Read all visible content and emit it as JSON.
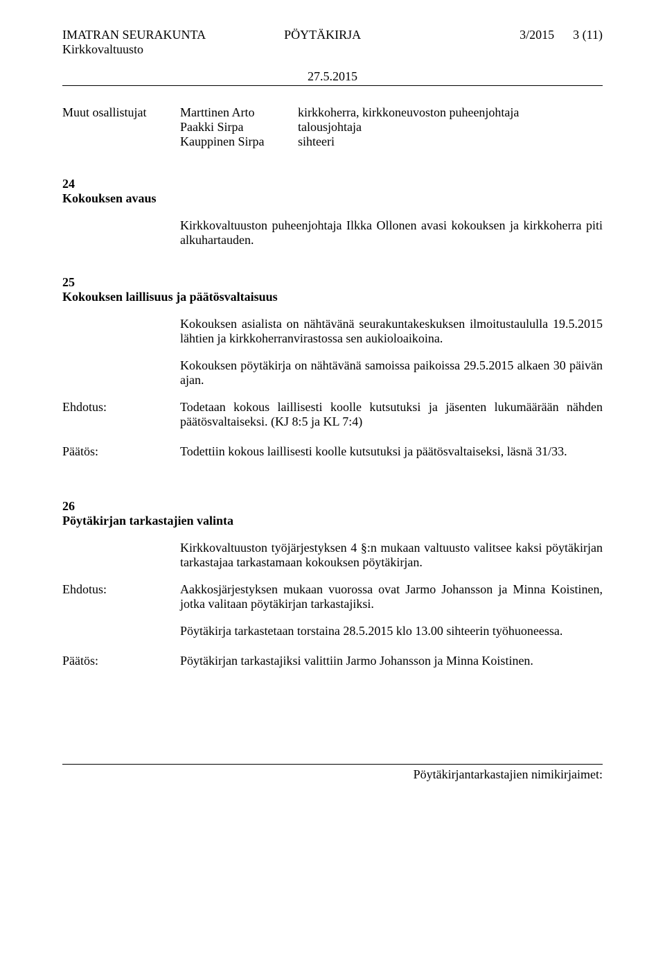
{
  "header": {
    "org": "IMATRAN SEURAKUNTA",
    "body": "Kirkkovaltuusto",
    "doc_type": "PÖYTÄKIRJA",
    "doc_number": "3/2015",
    "page_marker": "3 (11)",
    "date": "27.5.2015"
  },
  "participants": {
    "label": "Muut osallistujat",
    "rows": [
      {
        "name": "Marttinen Arto",
        "role": "kirkkoherra, kirkkoneuvoston puheenjohtaja"
      },
      {
        "name": "Paakki Sirpa",
        "role": "talousjohtaja"
      },
      {
        "name": "Kauppinen Sirpa",
        "role": "sihteeri"
      }
    ]
  },
  "item24": {
    "number": "24",
    "title": "Kokouksen avaus",
    "text": "Kirkkovaltuuston puheenjohtaja Ilkka Ollonen avasi kokouksen ja kirkkoherra piti alkuhartauden."
  },
  "item25": {
    "number": "25",
    "title": "Kokouksen laillisuus ja päätösvaltaisuus",
    "para1": "Kokouksen asialista on nähtävänä seurakuntakeskuksen ilmoitustaululla 19.5.2015 lähtien ja kirkkoherranvirastossa sen aukioloaikoina.",
    "para2": "Kokouksen pöytäkirja on nähtävänä samoissa paikoissa 29.5.2015 alkaen 30 päivän ajan.",
    "ehdotus_label": "Ehdotus:",
    "ehdotus_text": "Todetaan kokous laillisesti koolle kutsutuksi ja jäsenten lukumäärään nähden päätösvaltaiseksi. (KJ 8:5 ja KL 7:4)",
    "paatos_label": "Päätös:",
    "paatos_text": "Todettiin kokous laillisesti koolle kutsutuksi ja päätösvaltaiseksi, läsnä 31/33."
  },
  "item26": {
    "number": "26",
    "title": "Pöytäkirjan tarkastajien valinta",
    "para1": "Kirkkovaltuuston työjärjestyksen 4 §:n mukaan valtuusto valitsee kaksi pöytäkirjan tarkastajaa tarkastamaan kokouksen pöytäkirjan.",
    "ehdotus_label": "Ehdotus:",
    "ehdotus_text1": "Aakkosjärjestyksen mukaan vuorossa ovat Jarmo Johansson ja Minna Koistinen, jotka valitaan pöytäkirjan tarkastajiksi.",
    "ehdotus_text2": "Pöytäkirja tarkastetaan torstaina 28.5.2015 klo 13.00 sihteerin työhuoneessa.",
    "paatos_label": "Päätös:",
    "paatos_text": "Pöytäkirjan tarkastajiksi valittiin Jarmo Johansson ja Minna Koistinen."
  },
  "footer": {
    "text": "Pöytäkirjantarkastajien nimikirjaimet:"
  }
}
